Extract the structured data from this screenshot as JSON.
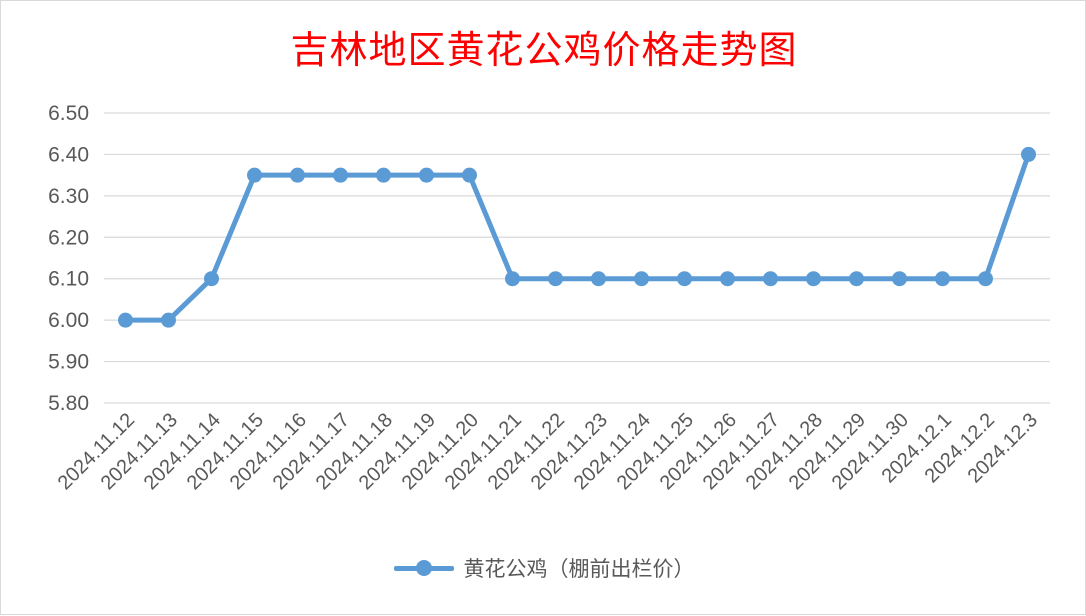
{
  "chart_data": {
    "type": "line",
    "title": "吉林地区黄花公鸡价格走势图",
    "xlabel": "",
    "ylabel": "",
    "ylim": [
      5.8,
      6.5
    ],
    "ytick_step": 0.1,
    "yticks": [
      "5.80",
      "5.90",
      "6.00",
      "6.10",
      "6.20",
      "6.30",
      "6.40",
      "6.50"
    ],
    "grid": true,
    "legend_position": "bottom",
    "categories": [
      "2024.11.12",
      "2024.11.13",
      "2024.11.14",
      "2024.11.15",
      "2024.11.16",
      "2024.11.17",
      "2024.11.18",
      "2024.11.19",
      "2024.11.20",
      "2024.11.21",
      "2024.11.22",
      "2024.11.23",
      "2024.11.24",
      "2024.11.25",
      "2024.11.26",
      "2024.11.27",
      "2024.11.28",
      "2024.11.29",
      "2024.11.30",
      "2024.12.1",
      "2024.12.2",
      "2024.12.3"
    ],
    "series": [
      {
        "name": "黄花公鸡（棚前出栏价）",
        "color": "#5b9bd5",
        "values": [
          6.0,
          6.0,
          6.1,
          6.35,
          6.35,
          6.35,
          6.35,
          6.35,
          6.35,
          6.1,
          6.1,
          6.1,
          6.1,
          6.1,
          6.1,
          6.1,
          6.1,
          6.1,
          6.1,
          6.1,
          6.1,
          6.4
        ]
      }
    ]
  }
}
